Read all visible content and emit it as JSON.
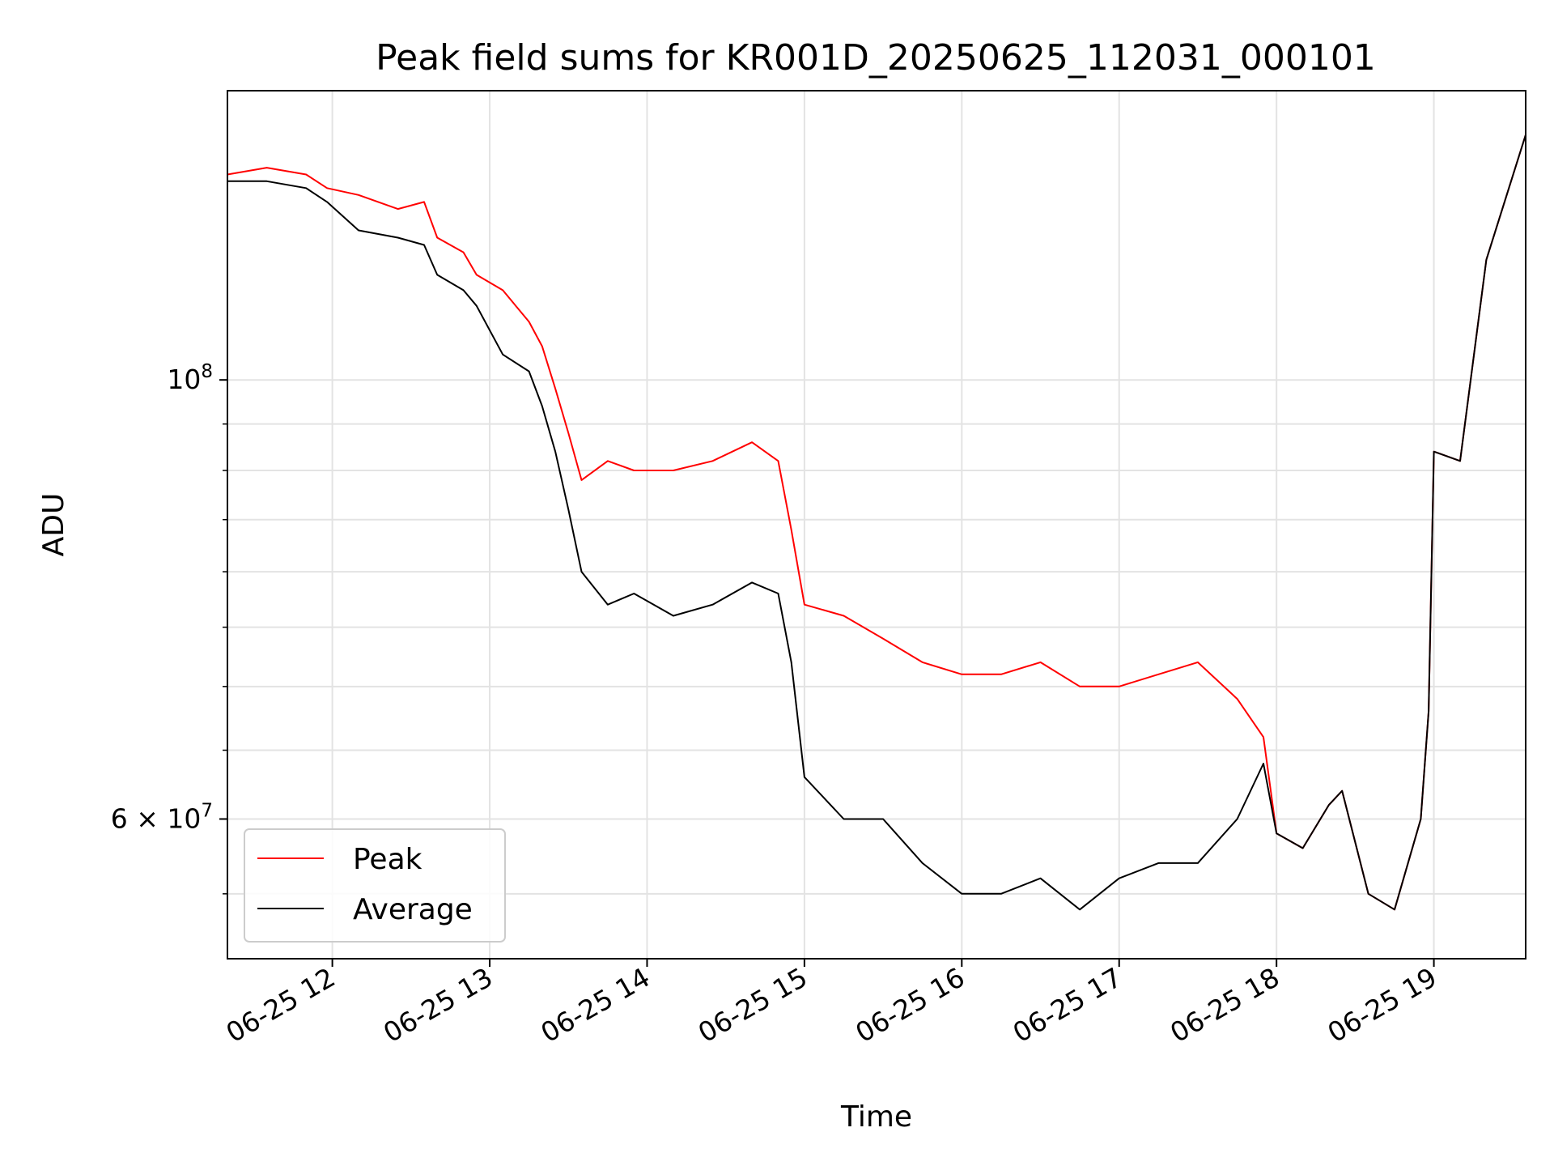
{
  "chart_data": {
    "type": "line",
    "title": "Peak field sums for KR001D_20250625_112031_000101",
    "xlabel": "Time",
    "ylabel": "ADU",
    "y_scale": "log",
    "ylim": [
      51000000,
      140000000
    ],
    "xlim": [
      "2025-06-25 11:20",
      "2025-06-25 19:35"
    ],
    "x_ticks": [
      {
        "t": "2025-06-25 12:00",
        "label": "06-25 12"
      },
      {
        "t": "2025-06-25 13:00",
        "label": "06-25 13"
      },
      {
        "t": "2025-06-25 14:00",
        "label": "06-25 14"
      },
      {
        "t": "2025-06-25 15:00",
        "label": "06-25 15"
      },
      {
        "t": "2025-06-25 16:00",
        "label": "06-25 16"
      },
      {
        "t": "2025-06-25 17:00",
        "label": "06-25 17"
      },
      {
        "t": "2025-06-25 18:00",
        "label": "06-25 18"
      },
      {
        "t": "2025-06-25 19:00",
        "label": "06-25 19"
      }
    ],
    "y_major_ticks": [
      {
        "value": 100000000,
        "mantissa": "10",
        "exp": "8"
      },
      {
        "value": 60000000,
        "mantissa": "6 × 10",
        "exp": "7"
      }
    ],
    "y_minor_ticks": [
      55000000,
      65000000,
      70000000,
      75000000,
      80000000,
      85000000,
      90000000,
      95000000
    ],
    "grid": true,
    "legend_position": "lower-left",
    "series": [
      {
        "name": "Peak",
        "color": "#ff0000",
        "x": [
          "2025-06-25 11:20",
          "2025-06-25 11:35",
          "2025-06-25 11:50",
          "2025-06-25 11:58",
          "2025-06-25 12:10",
          "2025-06-25 12:25",
          "2025-06-25 12:35",
          "2025-06-25 12:40",
          "2025-06-25 12:50",
          "2025-06-25 12:55",
          "2025-06-25 13:05",
          "2025-06-25 13:15",
          "2025-06-25 13:20",
          "2025-06-25 13:25",
          "2025-06-25 13:30",
          "2025-06-25 13:35",
          "2025-06-25 13:45",
          "2025-06-25 13:55",
          "2025-06-25 14:10",
          "2025-06-25 14:25",
          "2025-06-25 14:40",
          "2025-06-25 14:50",
          "2025-06-25 14:55",
          "2025-06-25 15:00",
          "2025-06-25 15:15",
          "2025-06-25 15:30",
          "2025-06-25 15:45",
          "2025-06-25 16:00",
          "2025-06-25 16:15",
          "2025-06-25 16:30",
          "2025-06-25 16:45",
          "2025-06-25 17:00",
          "2025-06-25 17:15",
          "2025-06-25 17:30",
          "2025-06-25 17:45",
          "2025-06-25 17:55",
          "2025-06-25 18:00",
          "2025-06-25 18:10",
          "2025-06-25 18:20",
          "2025-06-25 18:25",
          "2025-06-25 18:35",
          "2025-06-25 18:45",
          "2025-06-25 18:55",
          "2025-06-25 18:58",
          "2025-06-25 19:00",
          "2025-06-25 19:10",
          "2025-06-25 19:20",
          "2025-06-25 19:35"
        ],
        "values": [
          127000000,
          128000000,
          127000000,
          125000000,
          124000000,
          122000000,
          123000000,
          118000000,
          116000000,
          113000000,
          111000000,
          107000000,
          104000000,
          99000000,
          94000000,
          89000000,
          91000000,
          90000000,
          90000000,
          91000000,
          93000000,
          91000000,
          84000000,
          77000000,
          76000000,
          74000000,
          72000000,
          71000000,
          71000000,
          72000000,
          70000000,
          70000000,
          71000000,
          72000000,
          69000000,
          66000000,
          59000000,
          58000000,
          61000000,
          62000000,
          55000000,
          54000000,
          60000000,
          68000000,
          92000000,
          91000000,
          115000000,
          133000000
        ]
      },
      {
        "name": "Average",
        "color": "#000000",
        "x": [
          "2025-06-25 11:20",
          "2025-06-25 11:35",
          "2025-06-25 11:50",
          "2025-06-25 11:58",
          "2025-06-25 12:10",
          "2025-06-25 12:25",
          "2025-06-25 12:35",
          "2025-06-25 12:40",
          "2025-06-25 12:50",
          "2025-06-25 12:55",
          "2025-06-25 13:05",
          "2025-06-25 13:15",
          "2025-06-25 13:20",
          "2025-06-25 13:25",
          "2025-06-25 13:30",
          "2025-06-25 13:35",
          "2025-06-25 13:45",
          "2025-06-25 13:55",
          "2025-06-25 14:10",
          "2025-06-25 14:25",
          "2025-06-25 14:40",
          "2025-06-25 14:50",
          "2025-06-25 14:55",
          "2025-06-25 15:00",
          "2025-06-25 15:15",
          "2025-06-25 15:30",
          "2025-06-25 15:45",
          "2025-06-25 16:00",
          "2025-06-25 16:15",
          "2025-06-25 16:30",
          "2025-06-25 16:45",
          "2025-06-25 17:00",
          "2025-06-25 17:15",
          "2025-06-25 17:30",
          "2025-06-25 17:45",
          "2025-06-25 17:55",
          "2025-06-25 18:00",
          "2025-06-25 18:10",
          "2025-06-25 18:20",
          "2025-06-25 18:25",
          "2025-06-25 18:35",
          "2025-06-25 18:45",
          "2025-06-25 18:55",
          "2025-06-25 18:58",
          "2025-06-25 19:00",
          "2025-06-25 19:10",
          "2025-06-25 19:20",
          "2025-06-25 19:35"
        ],
        "values": [
          126000000,
          126000000,
          125000000,
          123000000,
          119000000,
          118000000,
          117000000,
          113000000,
          111000000,
          109000000,
          103000000,
          101000000,
          97000000,
          92000000,
          86000000,
          80000000,
          77000000,
          78000000,
          76000000,
          77000000,
          79000000,
          78000000,
          72000000,
          63000000,
          60000000,
          60000000,
          57000000,
          55000000,
          55000000,
          56000000,
          54000000,
          56000000,
          57000000,
          57000000,
          60000000,
          64000000,
          59000000,
          58000000,
          61000000,
          62000000,
          55000000,
          54000000,
          60000000,
          68000000,
          92000000,
          91000000,
          115000000,
          133000000
        ]
      }
    ]
  }
}
